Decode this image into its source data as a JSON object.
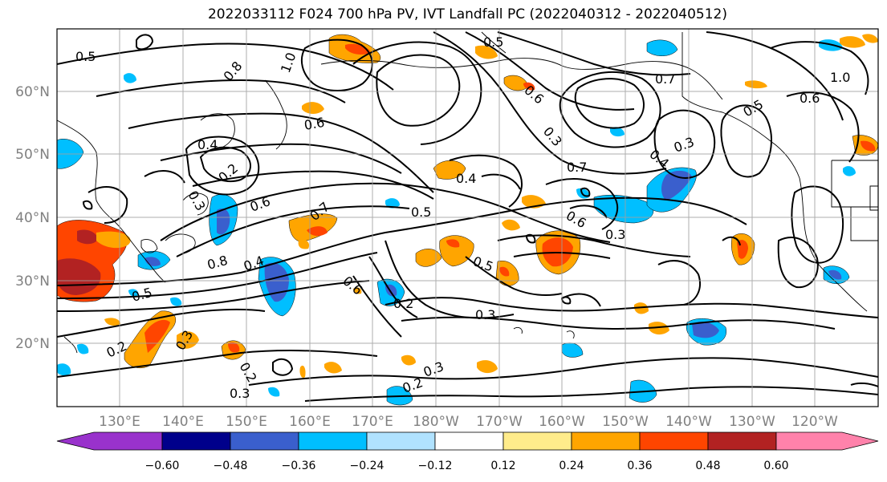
{
  "title": "2022033112 F024 700 hPa PV, IVT Landfall PC (2022040312 - 2022040512)",
  "latitude_labels": [
    "60°N",
    "50°N",
    "40°N",
    "30°N",
    "20°N"
  ],
  "longitude_labels": [
    "130°E",
    "140°E",
    "150°E",
    "160°E",
    "170°E",
    "180°W",
    "170°W",
    "160°W",
    "150°W",
    "140°W",
    "130°W",
    "120°W"
  ],
  "colorbar": {
    "tick_labels": [
      "−0.60",
      "−0.48",
      "−0.36",
      "−0.24",
      "−0.12",
      "0.12",
      "0.24",
      "0.36",
      "0.48",
      "0.60"
    ],
    "colors": [
      "#9932cc",
      "#00008b",
      "#3a5fcd",
      "#00bfff",
      "#b0e2ff",
      "#ffffff",
      "#ffec8b",
      "#ffa500",
      "#ff4500",
      "#b22222",
      "#ff82ab"
    ]
  },
  "contour_labels": [
    "0.5",
    "0.8",
    "1.0",
    "0.6",
    "0.4",
    "0.2",
    "0.3",
    "0.6",
    "0.7",
    "0.4",
    "0.8",
    "0.5",
    "0.2",
    "0.3",
    "0.5",
    "0.6",
    "0.3",
    "0.4",
    "0.7",
    "0.5",
    "0.6",
    "0.3",
    "0.5",
    "0.6",
    "0.2",
    "0.3",
    "0.2",
    "0.3",
    "0.2",
    "0.3",
    "0.4",
    "0.7",
    "0.5",
    "0.6",
    "0.3",
    "1.0"
  ]
}
